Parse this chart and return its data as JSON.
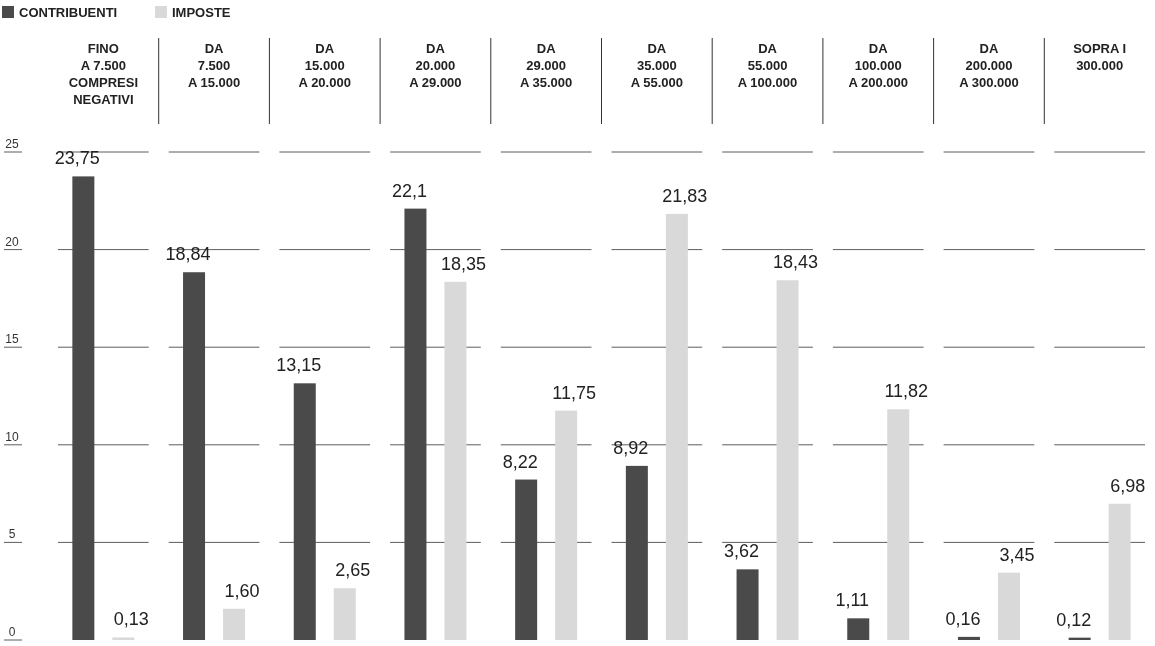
{
  "chart_data": {
    "type": "bar",
    "categories": [
      "FINO\nA 7.500\nCOMPRESI\nNEGATIVI",
      "DA\n7.500\nA 15.000",
      "DA\n15.000\nA 20.000",
      "DA\n20.000\nA 29.000",
      "DA\n29.000\nA 35.000",
      "DA\n35.000\nA 55.000",
      "DA\n55.000\nA 100.000",
      "DA\n100.000\nA 200.000",
      "DA\n200.000\nA 300.000",
      "SOPRA I\n300.000"
    ],
    "series": [
      {
        "name": "CONTRIBUENTI",
        "color": "#4a4a4a",
        "values": [
          23.75,
          18.84,
          13.15,
          22.1,
          8.22,
          8.92,
          3.62,
          1.11,
          0.16,
          0.12
        ],
        "value_labels": [
          "23,75",
          "18,84",
          "13,15",
          "22,1",
          "8,22",
          "8,92",
          "3,62",
          "1,11",
          "0,16",
          "0,12"
        ]
      },
      {
        "name": "IMPOSTE",
        "color": "#d9d9d9",
        "values": [
          0.13,
          1.6,
          2.65,
          18.35,
          11.75,
          21.83,
          18.43,
          11.82,
          3.45,
          6.98
        ],
        "value_labels": [
          "0,13",
          "1,60",
          "2,65",
          "18,35",
          "11,75",
          "21,83",
          "18,43",
          "11,82",
          "3,45",
          "6,98"
        ]
      }
    ],
    "ylim": [
      0,
      25
    ],
    "yticks": [
      0,
      5,
      10,
      15,
      20,
      25
    ],
    "grid": "y",
    "legend": "top left"
  }
}
